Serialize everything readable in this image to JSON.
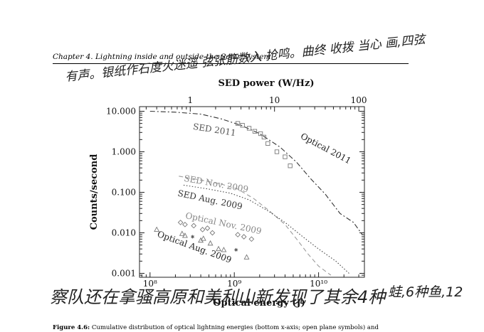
{
  "header": {
    "chapter": "Chapter 4.",
    "title": "Lightning inside and outside the Solar System"
  },
  "caption": {
    "label": "Figure 4.6:",
    "text": "Cumulative distribution of optical lightning energies (bottom x-axis; open plane symbols) and"
  },
  "handwriting": {
    "line1": "有声。银纸作石度火迷遥 弦张筋数入 抢鸣。曲终 收拨 当心 画,四弦",
    "line2": "察队还在拿骚高原和美利山新发现了其余4种",
    "line3": "蛙,6种鱼,12"
  },
  "chart_data": {
    "type": "line",
    "xlabel_bottom": "Optical energy (J)",
    "xlabel_top": "SED power (W/Hz)",
    "ylabel": "Counts/second",
    "xscale": "log",
    "yscale": "log",
    "xlim_bottom": [
      75000000.0,
      35000000000.0
    ],
    "ylim": [
      0.0008,
      13
    ],
    "bottom_ticks": [
      {
        "value": 100000000.0,
        "label": "10⁸"
      },
      {
        "value": 1000000000.0,
        "label": "10⁹"
      },
      {
        "value": 10000000000.0,
        "label": "10¹⁰"
      }
    ],
    "top_ticks": [
      {
        "value": 1,
        "label": "1"
      },
      {
        "value": 10,
        "label": "10"
      },
      {
        "value": 100,
        "label": "100"
      }
    ],
    "y_ticks": [
      {
        "value": 10,
        "label": "10.000"
      },
      {
        "value": 1,
        "label": "1.000"
      },
      {
        "value": 0.1,
        "label": "0.100"
      },
      {
        "value": 0.01,
        "label": "0.010"
      },
      {
        "value": 0.001,
        "label": "0.001"
      }
    ],
    "series": [
      {
        "name": "SED 2011",
        "style": "dashdot",
        "color": "#333333",
        "x": [
          100000000.0,
          200000000.0,
          400000000.0,
          700000000.0,
          1200000000.0,
          2000000000.0,
          3500000000.0,
          5500000000.0,
          8000000000.0,
          12000000000.0,
          18000000000.0,
          26000000000.0,
          33000000000.0
        ],
        "y": [
          10,
          9.5,
          8.5,
          6.5,
          4.5,
          2.8,
          1.3,
          0.55,
          0.22,
          0.09,
          0.03,
          0.018,
          0.009
        ]
      },
      {
        "name": "SED Nov. 2009",
        "style": "dashed",
        "color": "#9a9a9a",
        "x": [
          220000000.0,
          400000000.0,
          700000000.0,
          1100000000.0,
          1700000000.0,
          2600000000.0,
          4000000000.0,
          5500000000.0,
          7500000000.0,
          10000000000.0,
          14000000000.0
        ],
        "y": [
          0.25,
          0.2,
          0.16,
          0.12,
          0.07,
          0.035,
          0.016,
          0.007,
          0.003,
          0.0015,
          0.0009
        ]
      },
      {
        "name": "SED Aug. 2009",
        "style": "dotted",
        "color": "#444444",
        "x": [
          250000000.0,
          500000000.0,
          900000000.0,
          1500000000.0,
          2500000000.0,
          4000000000.0,
          6500000000.0,
          10000000000.0,
          16000000000.0,
          23000000000.0
        ],
        "y": [
          0.15,
          0.12,
          0.095,
          0.065,
          0.035,
          0.018,
          0.008,
          0.004,
          0.002,
          0.001
        ]
      },
      {
        "name": "Optical 2011",
        "style": "markers",
        "marker": "square",
        "color": "#777777",
        "x": [
          1100000000.0,
          1250000000.0,
          1500000000.0,
          1750000000.0,
          2050000000.0,
          2250000000.0,
          2500000000.0,
          3200000000.0,
          4000000000.0,
          4600000000.0
        ],
        "y": [
          5.0,
          4.5,
          3.8,
          3.2,
          2.8,
          2.3,
          1.6,
          1.0,
          0.75,
          0.45
        ]
      },
      {
        "name": "Optical Nov. 2009",
        "style": "markers",
        "marker": "diamond",
        "color": "#777777",
        "x": [
          230000000.0,
          260000000.0,
          330000000.0,
          420000000.0,
          480000000.0,
          550000000.0,
          1100000000.0,
          1300000000.0,
          1600000000.0
        ],
        "y": [
          0.018,
          0.016,
          0.015,
          0.012,
          0.013,
          0.01,
          0.009,
          0.008,
          0.007
        ]
      },
      {
        "name": "Optical Aug. 2009",
        "style": "markers",
        "marker": "triangle",
        "color": "#777777",
        "x": [
          120000000.0,
          240000000.0,
          260000000.0,
          400000000.0,
          430000000.0,
          520000000.0,
          650000000.0,
          750000000.0,
          1400000000.0
        ],
        "y": [
          0.012,
          0.0095,
          0.0085,
          0.0065,
          0.0072,
          0.0055,
          0.004,
          0.0038,
          0.0025
        ]
      },
      {
        "name": "",
        "style": "markers",
        "marker": "star",
        "color": "#555555",
        "x": [
          320000000.0,
          1050000000.0
        ],
        "y": [
          0.008,
          0.0038
        ]
      }
    ],
    "annotations": [
      {
        "text": "Optical 2011",
        "x": 6000000000.0,
        "y": 2.2,
        "angle": 28,
        "color": "#222222"
      },
      {
        "text": "SED 2011",
        "x": 320000000.0,
        "y": 3.6,
        "angle": 9,
        "color": "#555555"
      },
      {
        "text": "SED Nov. 2009",
        "x": 250000000.0,
        "y": 0.19,
        "angle": 10,
        "color": "#888888"
      },
      {
        "text": "SED Aug. 2009",
        "x": 210000000.0,
        "y": 0.082,
        "angle": 12,
        "color": "#333333"
      },
      {
        "text": "Optical Nov. 2009",
        "x": 260000000.0,
        "y": 0.023,
        "angle": 12,
        "color": "#888888"
      },
      {
        "text": "Optical Aug. 2009",
        "x": 120000000.0,
        "y": 0.0082,
        "angle": 20,
        "color": "#222222"
      }
    ]
  }
}
